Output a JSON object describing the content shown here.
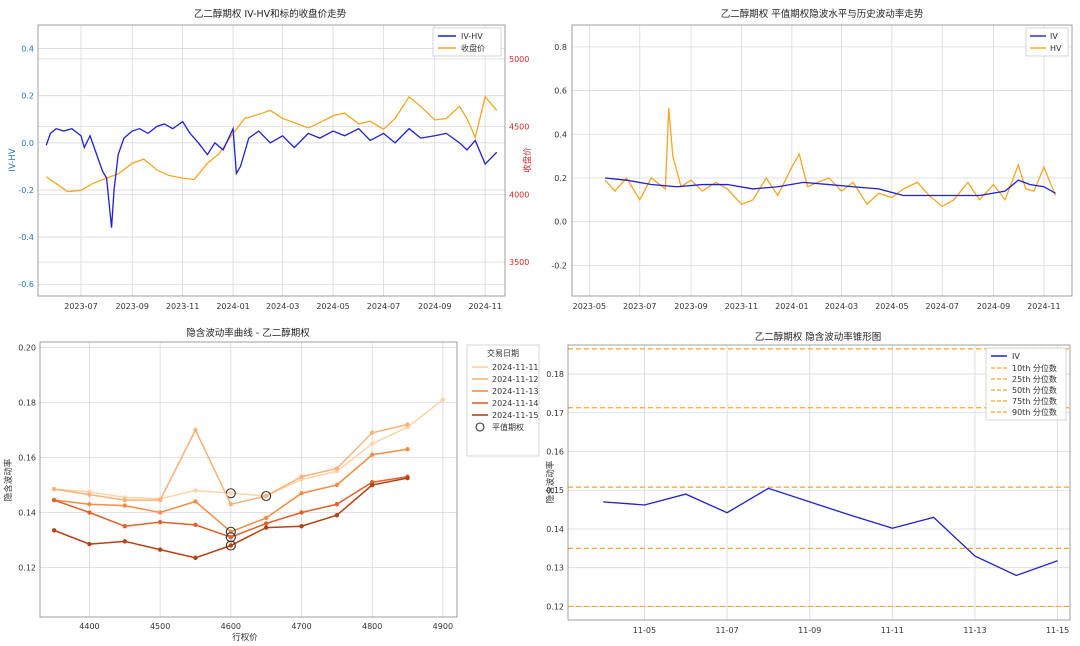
{
  "chart_data": [
    {
      "type": "line",
      "title": "乙二醇期权 IV-HV和标的收盘价走势",
      "ylabel": "IV-HV",
      "y2label": "收盘价",
      "x_ticks": [
        "2023-07",
        "2023-09",
        "2023-11",
        "2024-01",
        "2024-03",
        "2024-05",
        "2024-07",
        "2024-09",
        "2024-11"
      ],
      "y_ticks": [
        "0.4",
        "0.2",
        "0.0",
        "-0.2",
        "-0.4",
        "-0.6"
      ],
      "y2_ticks": [
        "5000",
        "4500",
        "4000",
        "3500"
      ],
      "ylim": [
        -0.65,
        0.5
      ],
      "y2lim": [
        3250,
        5250
      ],
      "grid": true,
      "legend": "top-right",
      "colors": {
        "ivhv": "#1f1fd6",
        "close": "#f5a623",
        "y_axis": "#1f77b4",
        "y2_axis": "#d62728"
      },
      "series": [
        {
          "name": "IV-HV",
          "axis": "left",
          "x": [
            "2023-05-20",
            "2023-05-25",
            "2023-06-01",
            "2023-06-10",
            "2023-06-20",
            "2023-07-01",
            "2023-07-05",
            "2023-07-12",
            "2023-07-20",
            "2023-07-27",
            "2023-08-01",
            "2023-08-07",
            "2023-08-10",
            "2023-08-15",
            "2023-08-22",
            "2023-09-01",
            "2023-09-10",
            "2023-09-20",
            "2023-10-01",
            "2023-10-10",
            "2023-10-20",
            "2023-11-01",
            "2023-11-10",
            "2023-11-20",
            "2023-12-01",
            "2023-12-10",
            "2023-12-20",
            "2024-01-01",
            "2024-01-05",
            "2024-01-10",
            "2024-01-20",
            "2024-02-01",
            "2024-02-15",
            "2024-03-01",
            "2024-03-15",
            "2024-04-01",
            "2024-04-15",
            "2024-05-01",
            "2024-05-15",
            "2024-06-01",
            "2024-06-15",
            "2024-07-01",
            "2024-07-15",
            "2024-08-01",
            "2024-08-15",
            "2024-09-01",
            "2024-09-15",
            "2024-10-01",
            "2024-10-10",
            "2024-10-20",
            "2024-11-01",
            "2024-11-15"
          ],
          "values": [
            -0.01,
            0.04,
            0.06,
            0.05,
            0.06,
            0.03,
            -0.02,
            0.03,
            -0.05,
            -0.12,
            -0.15,
            -0.36,
            -0.2,
            -0.05,
            0.02,
            0.05,
            0.06,
            0.04,
            0.07,
            0.08,
            0.06,
            0.09,
            0.04,
            0.0,
            -0.05,
            0.0,
            -0.03,
            0.06,
            -0.13,
            -0.1,
            0.02,
            0.05,
            0.0,
            0.03,
            -0.02,
            0.04,
            0.02,
            0.05,
            0.03,
            0.06,
            0.01,
            0.04,
            0.0,
            0.06,
            0.02,
            0.03,
            0.04,
            0.0,
            -0.03,
            0.01,
            -0.09,
            -0.04
          ]
        },
        {
          "name": "收盘价",
          "axis": "right",
          "x": [
            "2023-05-20",
            "2023-06-01",
            "2023-06-15",
            "2023-07-01",
            "2023-07-15",
            "2023-08-01",
            "2023-08-15",
            "2023-09-01",
            "2023-09-15",
            "2023-10-01",
            "2023-10-15",
            "2023-11-01",
            "2023-11-15",
            "2023-12-01",
            "2023-12-15",
            "2024-01-01",
            "2024-01-15",
            "2024-02-01",
            "2024-02-15",
            "2024-03-01",
            "2024-03-15",
            "2024-04-01",
            "2024-04-15",
            "2024-05-01",
            "2024-05-15",
            "2024-06-01",
            "2024-06-15",
            "2024-07-01",
            "2024-07-15",
            "2024-08-01",
            "2024-08-15",
            "2024-09-01",
            "2024-09-15",
            "2024-10-01",
            "2024-10-10",
            "2024-10-20",
            "2024-11-01",
            "2024-11-15"
          ],
          "values": [
            4130,
            4080,
            4020,
            4030,
            4080,
            4120,
            4150,
            4230,
            4260,
            4180,
            4140,
            4120,
            4110,
            4230,
            4300,
            4450,
            4560,
            4590,
            4620,
            4560,
            4530,
            4490,
            4530,
            4580,
            4600,
            4520,
            4540,
            4480,
            4560,
            4720,
            4650,
            4550,
            4560,
            4650,
            4560,
            4420,
            4720,
            4620
          ]
        }
      ]
    },
    {
      "type": "line",
      "title": "乙二醇期权 平值期权隐波水平与历史波动率走势",
      "x_ticks": [
        "2023-05",
        "2023-07",
        "2023-09",
        "2023-11",
        "2024-01",
        "2024-03",
        "2024-05",
        "2024-07",
        "2024-09",
        "2024-11"
      ],
      "y_ticks": [
        "0.8",
        "0.6",
        "0.4",
        "0.2",
        "0.0",
        "-0.2"
      ],
      "ylim": [
        -0.34,
        0.9
      ],
      "grid": true,
      "legend": "top-right",
      "colors": {
        "iv": "#1f1fd6",
        "hv": "#f5a623"
      },
      "series": [
        {
          "name": "IV",
          "x": [
            "2023-05-20",
            "2023-06-15",
            "2023-07-15",
            "2023-08-15",
            "2023-09-15",
            "2023-10-15",
            "2023-11-15",
            "2023-12-15",
            "2024-01-15",
            "2024-02-15",
            "2024-03-15",
            "2024-04-15",
            "2024-05-15",
            "2024-06-15",
            "2024-07-15",
            "2024-08-15",
            "2024-09-15",
            "2024-10-01",
            "2024-10-15",
            "2024-11-01",
            "2024-11-15"
          ],
          "values": [
            0.2,
            0.19,
            0.17,
            0.16,
            0.17,
            0.17,
            0.15,
            0.16,
            0.18,
            0.17,
            0.16,
            0.15,
            0.12,
            0.12,
            0.12,
            0.12,
            0.14,
            0.19,
            0.17,
            0.16,
            0.13
          ]
        },
        {
          "name": "HV",
          "x": [
            "2023-05-20",
            "2023-06-01",
            "2023-06-15",
            "2023-07-01",
            "2023-07-15",
            "2023-08-01",
            "2023-08-05",
            "2023-08-10",
            "2023-08-20",
            "2023-09-01",
            "2023-09-15",
            "2023-10-01",
            "2023-10-15",
            "2023-11-01",
            "2023-11-15",
            "2023-12-01",
            "2023-12-15",
            "2024-01-01",
            "2024-01-10",
            "2024-01-20",
            "2024-02-01",
            "2024-02-15",
            "2024-03-01",
            "2024-03-15",
            "2024-04-01",
            "2024-04-15",
            "2024-05-01",
            "2024-05-15",
            "2024-06-01",
            "2024-06-15",
            "2024-07-01",
            "2024-07-15",
            "2024-08-01",
            "2024-08-15",
            "2024-09-01",
            "2024-09-15",
            "2024-10-01",
            "2024-10-10",
            "2024-10-20",
            "2024-11-01",
            "2024-11-15"
          ],
          "values": [
            0.19,
            0.14,
            0.2,
            0.1,
            0.2,
            0.15,
            0.52,
            0.3,
            0.16,
            0.19,
            0.14,
            0.18,
            0.15,
            0.08,
            0.1,
            0.2,
            0.12,
            0.25,
            0.31,
            0.16,
            0.18,
            0.2,
            0.14,
            0.18,
            0.08,
            0.13,
            0.11,
            0.15,
            0.18,
            0.12,
            0.07,
            0.1,
            0.18,
            0.1,
            0.17,
            0.1,
            0.26,
            0.15,
            0.14,
            0.25,
            0.12
          ]
        }
      ]
    },
    {
      "type": "line",
      "title": "隐含波动率曲线 - 乙二醇期权",
      "xlabel": "行权价",
      "ylabel": "隐含波动率",
      "x_ticks": [
        "4400",
        "4500",
        "4600",
        "4700",
        "4800",
        "4900"
      ],
      "y_ticks": [
        "0.20",
        "0.18",
        "0.16",
        "0.14",
        "0.12"
      ],
      "xlim": [
        4330,
        4920
      ],
      "ylim": [
        0.102,
        0.202
      ],
      "grid": true,
      "legend": "top-right",
      "legend_title": "交易日期",
      "atm_label": "平值期权",
      "series": [
        {
          "name": "2024-11-11",
          "color": "#fdd4a8",
          "x": [
            4350,
            4400,
            4450,
            4500,
            4550,
            4600,
            4650,
            4700,
            4750,
            4800,
            4850,
            4900
          ],
          "values": [
            0.1485,
            0.1475,
            0.1455,
            0.145,
            0.148,
            0.147,
            0.146,
            0.152,
            0.155,
            0.165,
            0.171,
            0.181
          ],
          "atm_index": 5
        },
        {
          "name": "2024-11-12",
          "color": "#fdb077",
          "x": [
            4350,
            4400,
            4450,
            4500,
            4550,
            4600,
            4650,
            4700,
            4750,
            4800,
            4850
          ],
          "values": [
            0.1485,
            0.1465,
            0.1445,
            0.1445,
            0.17,
            0.143,
            0.146,
            0.153,
            0.156,
            0.169,
            0.172
          ],
          "atm_index": 6
        },
        {
          "name": "2024-11-13",
          "color": "#f68c45",
          "x": [
            4350,
            4400,
            4450,
            4500,
            4550,
            4600,
            4650,
            4700,
            4750,
            4800,
            4850
          ],
          "values": [
            0.1445,
            0.143,
            0.1425,
            0.14,
            0.144,
            0.133,
            0.138,
            0.147,
            0.15,
            0.161,
            0.163
          ],
          "atm_index": 5
        },
        {
          "name": "2024-11-14",
          "color": "#e0622a",
          "x": [
            4350,
            4400,
            4450,
            4500,
            4550,
            4600,
            4650,
            4700,
            4750,
            4800,
            4850
          ],
          "values": [
            0.1445,
            0.14,
            0.135,
            0.1365,
            0.1355,
            0.131,
            0.136,
            0.14,
            0.143,
            0.151,
            0.153
          ],
          "atm_index": 5
        },
        {
          "name": "2024-11-15",
          "color": "#b84012",
          "x": [
            4350,
            4400,
            4450,
            4500,
            4550,
            4600,
            4650,
            4700,
            4750,
            4800,
            4850
          ],
          "values": [
            0.1335,
            0.1285,
            0.1295,
            0.1265,
            0.1235,
            0.128,
            0.1345,
            0.135,
            0.139,
            0.15,
            0.1525
          ],
          "atm_index": 5
        }
      ]
    },
    {
      "type": "line",
      "title": "乙二醇期权 隐含波动率锥形图",
      "ylabel": "隐含波动率",
      "x_ticks": [
        "11-05",
        "11-07",
        "11-09",
        "11-11",
        "11-13",
        "11-15"
      ],
      "y_ticks": [
        "0.18",
        "0.17",
        "0.16",
        "0.15",
        "0.14",
        "0.13",
        "0.12"
      ],
      "x": [
        "11-04",
        "11-05",
        "11-06",
        "11-07",
        "11-08",
        "11-09",
        "11-10",
        "11-11",
        "11-12",
        "11-13",
        "11-14",
        "11-15"
      ],
      "xlim": [
        3.15,
        15.3
      ],
      "ylim": [
        0.1165,
        0.1875
      ],
      "grid": true,
      "legend": "top-right",
      "colors": {
        "iv": "#1f1fd6",
        "percentile": "#f5a623"
      },
      "series": [
        {
          "name": "IV",
          "x": [
            4,
            5,
            6,
            7,
            8,
            9,
            10,
            11,
            12,
            13,
            14,
            15
          ],
          "values": [
            0.147,
            0.1462,
            0.149,
            0.1442,
            0.1505,
            0.147,
            0.1435,
            0.1402,
            0.143,
            0.133,
            0.128,
            0.1318
          ]
        }
      ],
      "percentiles": [
        {
          "name": "10th 分位数",
          "value": 0.12
        },
        {
          "name": "25th 分位数",
          "value": 0.135
        },
        {
          "name": "50th 分位数",
          "value": 0.1508
        },
        {
          "name": "75th 分位数",
          "value": 0.1713
        },
        {
          "name": "90th 分位数",
          "value": 0.1865
        }
      ]
    }
  ]
}
